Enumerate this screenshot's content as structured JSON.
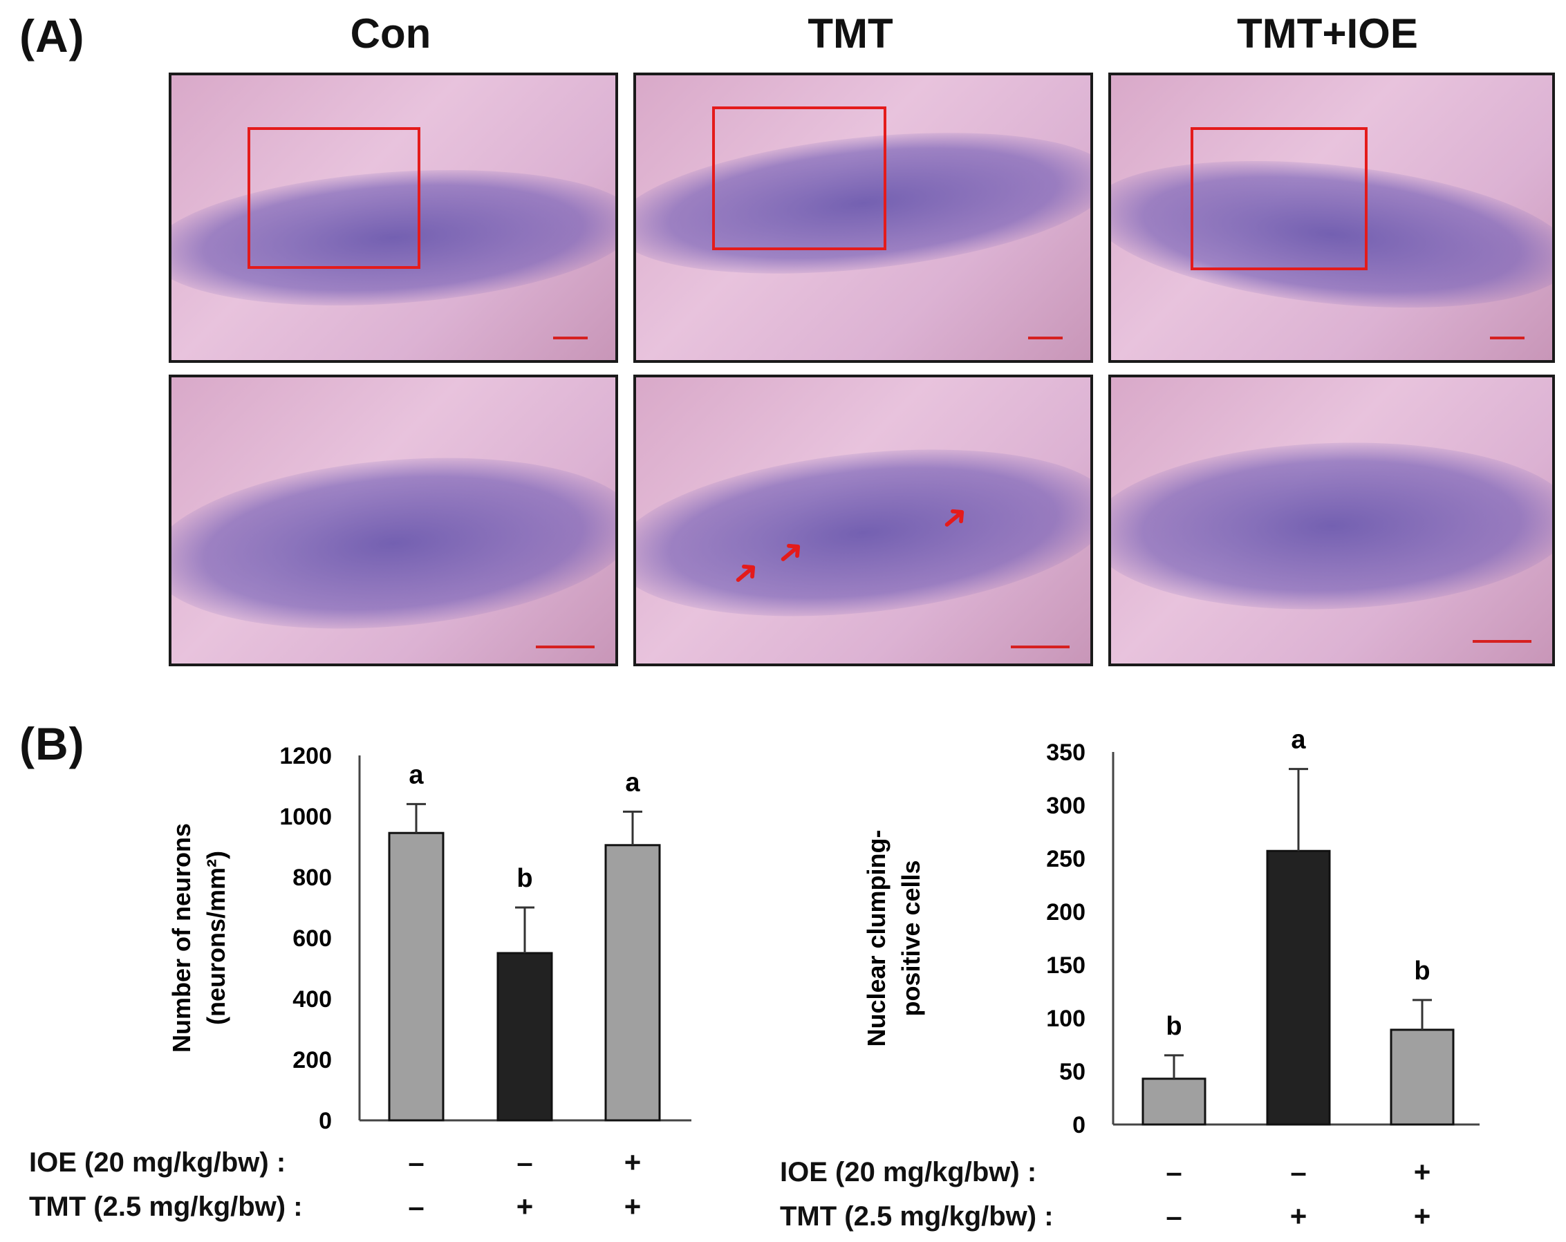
{
  "panel_a": {
    "letter": "(A)",
    "column_titles": [
      "Con",
      "TMT",
      "TMT+IOE"
    ]
  },
  "panel_b": {
    "letter": "(B)"
  },
  "chart_data": [
    {
      "type": "bar",
      "categories": [
        "Con",
        "TMT",
        "TMT+IOE"
      ],
      "values": [
        945,
        550,
        905
      ],
      "error": [
        95,
        150,
        110
      ],
      "sig_letters": [
        "a",
        "b",
        "a"
      ],
      "bar_colors": [
        "#a0a0a0",
        "#222222",
        "#a0a0a0"
      ],
      "ylabel": [
        "Number of neurons",
        "(neurons/mm²)"
      ],
      "ylim": [
        0,
        1200
      ],
      "yticks": [
        0,
        200,
        400,
        600,
        800,
        1000,
        1200
      ],
      "treatment_rows": [
        {
          "label": "IOE (20 mg/kg/bw) :",
          "signs": [
            "–",
            "–",
            "+"
          ]
        },
        {
          "label": "TMT (2.5 mg/kg/bw) :",
          "signs": [
            "–",
            "+",
            "+"
          ]
        }
      ]
    },
    {
      "type": "bar",
      "categories": [
        "Con",
        "TMT",
        "TMT+IOE"
      ],
      "values": [
        43,
        257,
        89
      ],
      "error": [
        22,
        77,
        28
      ],
      "sig_letters": [
        "b",
        "a",
        "b"
      ],
      "bar_colors": [
        "#a0a0a0",
        "#222222",
        "#a0a0a0"
      ],
      "ylabel": [
        "Nuclear clumping-",
        "positive cells"
      ],
      "ylim": [
        0,
        350
      ],
      "yticks": [
        0,
        50,
        100,
        150,
        200,
        250,
        300,
        350
      ],
      "treatment_rows": [
        {
          "label": "IOE (20 mg/kg/bw) :",
          "signs": [
            "–",
            "–",
            "+"
          ]
        },
        {
          "label": "TMT (2.5 mg/kg/bw) :",
          "signs": [
            "–",
            "+",
            "+"
          ]
        }
      ]
    }
  ]
}
